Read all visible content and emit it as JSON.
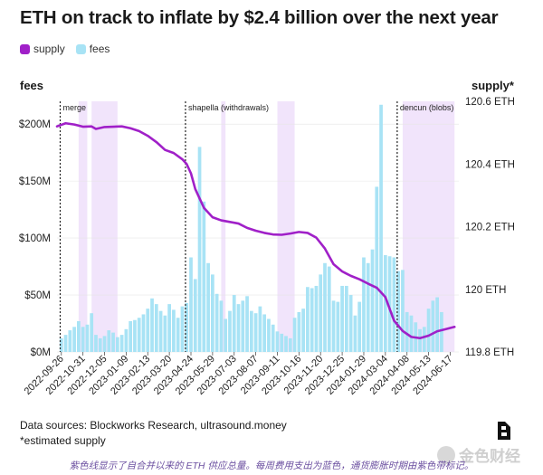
{
  "header": {
    "title": "ETH on track to inflate by $2.4 billion over the next year"
  },
  "legend": {
    "supply_label": "supply",
    "fees_label": "fees"
  },
  "colors": {
    "supply": "#a020c8",
    "fees": "#a8e3f5",
    "inflation_band": "#f1e4fb",
    "event_line": "#222222",
    "grid": "#e6e6e6"
  },
  "chart_data": {
    "type": "bar",
    "title": "ETH on track to inflate by $2.4 billion over the next year",
    "y_left": {
      "label": "fees",
      "ticks": [
        {
          "value": 0,
          "label": "$0M"
        },
        {
          "value": 50,
          "label": "$50M"
        },
        {
          "value": 100,
          "label": "$100M"
        },
        {
          "value": 150,
          "label": "$150M"
        },
        {
          "value": 200,
          "label": "$200M"
        }
      ],
      "range": [
        0,
        220
      ]
    },
    "y_right": {
      "label": "supply*",
      "ticks": [
        {
          "value": 119.8,
          "label": "119.8 ETH"
        },
        {
          "value": 120.0,
          "label": "120 ETH"
        },
        {
          "value": 120.2,
          "label": "120.2 ETH"
        },
        {
          "value": 120.4,
          "label": "120.4 ETH"
        },
        {
          "value": 120.6,
          "label": "120.6 ETH"
        }
      ],
      "range": [
        119.8,
        120.6
      ]
    },
    "x_ticks": [
      {
        "week": 1,
        "label": "2022-09-26"
      },
      {
        "week": 6,
        "label": "2022-10-31"
      },
      {
        "week": 11,
        "label": "2022-12-05"
      },
      {
        "week": 16,
        "label": "2023-01-09"
      },
      {
        "week": 21,
        "label": "2023-02-13"
      },
      {
        "week": 26,
        "label": "2023-03-20"
      },
      {
        "week": 31,
        "label": "2023-04-24"
      },
      {
        "week": 36,
        "label": "2023-05-29"
      },
      {
        "week": 41,
        "label": "2023-07-03"
      },
      {
        "week": 46,
        "label": "2023-08-07"
      },
      {
        "week": 51,
        "label": "2023-09-11"
      },
      {
        "week": 56,
        "label": "2023-10-16"
      },
      {
        "week": 61,
        "label": "2023-11-20"
      },
      {
        "week": 66,
        "label": "2023-12-25"
      },
      {
        "week": 71,
        "label": "2024-01-29"
      },
      {
        "week": 76,
        "label": "2024-03-04"
      },
      {
        "week": 81,
        "label": "2024-04-08"
      },
      {
        "week": 86,
        "label": "2024-05-13"
      },
      {
        "week": 91,
        "label": "2024-06-17"
      }
    ],
    "week_range": [
      0,
      93
    ],
    "events": [
      {
        "week": 0,
        "label": "merge"
      },
      {
        "week": 29,
        "label": "shapella (withdrawals)"
      },
      {
        "week": 78,
        "label": "dencun (blobs)"
      }
    ],
    "inflation_periods": [
      [
        5,
        7
      ],
      [
        8,
        14
      ],
      [
        38,
        39
      ],
      [
        51,
        55
      ],
      [
        80,
        92
      ]
    ],
    "series": [
      {
        "name": "fees",
        "kind": "bar",
        "values": [
          12,
          15,
          19,
          22,
          27,
          22,
          24,
          34,
          15,
          12,
          14,
          19,
          17,
          13,
          15,
          20,
          27,
          28,
          30,
          33,
          38,
          47,
          42,
          36,
          32,
          42,
          37,
          30,
          40,
          43,
          83,
          64,
          180,
          132,
          78,
          68,
          51,
          45,
          29,
          36,
          50,
          42,
          45,
          49,
          36,
          34,
          40,
          33,
          29,
          24,
          18,
          16,
          14,
          12,
          30,
          35,
          38,
          57,
          56,
          58,
          68,
          78,
          75,
          45,
          44,
          58,
          58,
          50,
          32,
          44,
          83,
          78,
          90,
          145,
          217,
          85,
          84,
          83,
          71,
          72,
          35,
          32,
          26,
          20,
          22,
          38,
          45,
          48,
          35
        ]
      },
      {
        "name": "supply",
        "kind": "line",
        "axis": "right",
        "points": [
          [
            0,
            120.52
          ],
          [
            2,
            120.53
          ],
          [
            4,
            120.526
          ],
          [
            6,
            120.519
          ],
          [
            8,
            120.52
          ],
          [
            9,
            120.512
          ],
          [
            11,
            120.518
          ],
          [
            13,
            120.519
          ],
          [
            15,
            120.52
          ],
          [
            17,
            120.514
          ],
          [
            19,
            120.505
          ],
          [
            21,
            120.49
          ],
          [
            23,
            120.47
          ],
          [
            25,
            120.445
          ],
          [
            27,
            120.435
          ],
          [
            29,
            120.415
          ],
          [
            30,
            120.4
          ],
          [
            31,
            120.37
          ],
          [
            32,
            120.32
          ],
          [
            34,
            120.26
          ],
          [
            36,
            120.23
          ],
          [
            38,
            120.22
          ],
          [
            40,
            120.215
          ],
          [
            42,
            120.21
          ],
          [
            44,
            120.196
          ],
          [
            46,
            120.187
          ],
          [
            48,
            120.18
          ],
          [
            50,
            120.175
          ],
          [
            52,
            120.174
          ],
          [
            54,
            120.178
          ],
          [
            56,
            120.183
          ],
          [
            58,
            120.18
          ],
          [
            60,
            120.165
          ],
          [
            62,
            120.13
          ],
          [
            64,
            120.08
          ],
          [
            66,
            120.057
          ],
          [
            68,
            120.043
          ],
          [
            70,
            120.032
          ],
          [
            72,
            120.018
          ],
          [
            74,
            120.005
          ],
          [
            76,
            119.975
          ],
          [
            78,
            119.9
          ],
          [
            80,
            119.867
          ],
          [
            82,
            119.848
          ],
          [
            84,
            119.844
          ],
          [
            86,
            119.852
          ],
          [
            88,
            119.866
          ],
          [
            90,
            119.873
          ],
          [
            92,
            119.88
          ]
        ]
      }
    ]
  },
  "footer": {
    "sources": "Data sources: Blockworks Research, ultrasound.money",
    "note": "*estimated supply",
    "caption": "紫色线显示了自合并以来的 ETH 供应总量。每周费用支出为蓝色，通货膨胀时期由紫色带标记。",
    "watermark": "金色财经"
  }
}
